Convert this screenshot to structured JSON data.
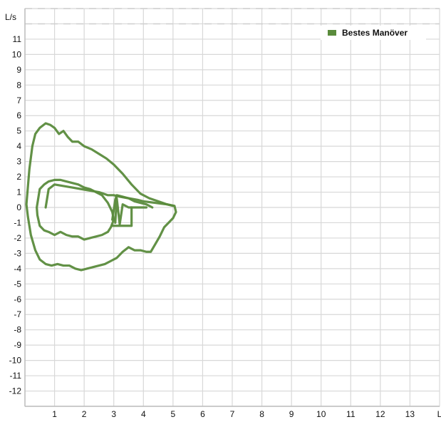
{
  "chart_data": {
    "type": "line",
    "title": "",
    "xlabel": "L",
    "ylabel": "L/s",
    "xlim": [
      0,
      14
    ],
    "ylim": [
      -13,
      13
    ],
    "x_ticks": [
      "1",
      "2",
      "3",
      "4",
      "5",
      "6",
      "7",
      "8",
      "9",
      "10",
      "11",
      "12",
      "13",
      "L"
    ],
    "y_ticks": [
      "11",
      "10",
      "9",
      "8",
      "7",
      "6",
      "5",
      "4",
      "3",
      "2",
      "1",
      "0",
      "-1",
      "-2",
      "-3",
      "-4",
      "-5",
      "-6",
      "-7",
      "-8",
      "-9",
      "-10",
      "-11",
      "-12"
    ],
    "grid": true,
    "legend": {
      "position": "top-right",
      "entries": [
        "Bestes Manöver"
      ]
    },
    "series": [
      {
        "name": "Bestes Manöver",
        "color": "#5a8b3c",
        "curves": [
          {
            "x": [
              0.05,
              0.15,
              0.25,
              0.35,
              0.5,
              0.7,
              0.85,
              1.0,
              1.15,
              1.3,
              1.45,
              1.6,
              1.8,
              2.0,
              2.25,
              2.5,
              2.75,
              3.0,
              3.3,
              3.6,
              3.9,
              4.2,
              4.5,
              4.8,
              5.05,
              5.1,
              5.0,
              4.85,
              4.7,
              4.55,
              4.4,
              4.25,
              4.1,
              3.9,
              3.7,
              3.5,
              3.3,
              3.1,
              2.9,
              2.7,
              2.5,
              2.3,
              2.1,
              1.9,
              1.7,
              1.5,
              1.3,
              1.1,
              0.9,
              0.7,
              0.5,
              0.35,
              0.2,
              0.1,
              0.05
            ],
            "y": [
              0.2,
              2.5,
              4.0,
              4.8,
              5.2,
              5.5,
              5.4,
              5.2,
              4.8,
              5.0,
              4.6,
              4.3,
              4.3,
              4.0,
              3.8,
              3.5,
              3.2,
              2.8,
              2.2,
              1.5,
              0.9,
              0.6,
              0.4,
              0.2,
              0.1,
              -0.3,
              -0.7,
              -1.0,
              -1.3,
              -1.9,
              -2.4,
              -2.9,
              -2.9,
              -2.8,
              -2.8,
              -2.6,
              -2.9,
              -3.3,
              -3.5,
              -3.7,
              -3.8,
              -3.9,
              -4.0,
              -4.1,
              -4.0,
              -3.8,
              -3.8,
              -3.7,
              -3.8,
              -3.7,
              -3.4,
              -2.8,
              -1.8,
              -0.6,
              0.2
            ]
          },
          {
            "x": [
              0.4,
              0.5,
              0.65,
              0.8,
              1.0,
              1.2,
              1.4,
              1.6,
              1.8,
              2.0,
              2.2,
              2.4,
              2.6,
              2.8,
              2.95,
              3.0,
              2.9,
              2.8,
              2.6,
              2.4,
              2.2,
              2.0,
              1.8,
              1.6,
              1.4,
              1.2,
              1.0,
              0.8,
              0.65,
              0.5,
              0.42,
              0.4
            ],
            "y": [
              0.0,
              1.2,
              1.5,
              1.7,
              1.8,
              1.8,
              1.7,
              1.6,
              1.5,
              1.3,
              1.2,
              1.0,
              0.8,
              0.3,
              -0.3,
              -0.8,
              -1.3,
              -1.6,
              -1.8,
              -1.9,
              -2.0,
              -2.1,
              -1.9,
              -1.9,
              -1.8,
              -1.6,
              -1.8,
              -1.6,
              -1.5,
              -1.2,
              -0.5,
              0.0
            ]
          },
          {
            "x": [
              0.7,
              0.8,
              1.0,
              1.3,
              1.6,
              1.9,
              2.2,
              2.5,
              2.8,
              3.0,
              3.2,
              3.5,
              3.8,
              4.0,
              4.2,
              4.4,
              4.6,
              4.8,
              5.0
            ],
            "y": [
              0.0,
              1.2,
              1.5,
              1.4,
              1.3,
              1.2,
              1.1,
              1.0,
              0.8,
              0.8,
              0.7,
              0.6,
              0.5,
              0.4,
              0.35,
              0.3,
              0.25,
              0.2,
              0.1
            ]
          },
          {
            "x": [
              2.95,
              3.05,
              3.1,
              3.3,
              3.5,
              3.7,
              3.9,
              4.1,
              4.2,
              4.3
            ],
            "y": [
              -0.8,
              0.5,
              0.8,
              0.7,
              0.6,
              0.4,
              0.3,
              0.2,
              0.1,
              0.0
            ]
          },
          {
            "x": [
              3.05,
              3.1,
              3.2,
              3.3,
              3.5,
              3.8,
              4.1
            ],
            "y": [
              -1.0,
              0.6,
              -1.1,
              0.2,
              0.0,
              0.0,
              0.0
            ]
          },
          {
            "x": [
              2.95,
              3.6,
              3.6
            ],
            "y": [
              -1.2,
              -1.2,
              0.0
            ]
          }
        ]
      }
    ]
  }
}
